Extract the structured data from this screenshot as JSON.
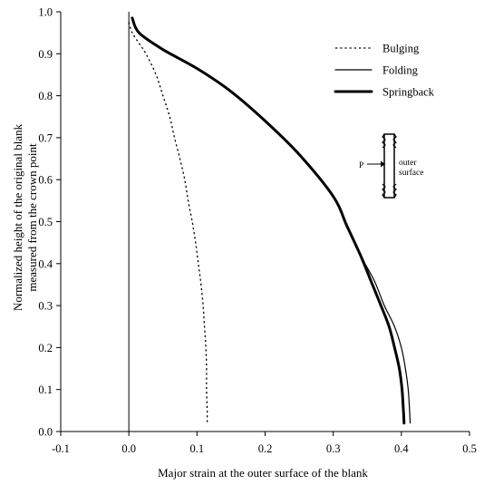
{
  "chart_data": {
    "type": "line",
    "title": "",
    "xlabel": "Major strain at the outer surface of the blank",
    "ylabel_line1": "Normalized height of the original blank",
    "ylabel_line2": "measured from the crown point",
    "xlim": [
      -0.1,
      0.5
    ],
    "ylim": [
      0.0,
      1.0
    ],
    "x_ticks": [
      -0.1,
      0.0,
      0.1,
      0.2,
      0.3,
      0.4,
      0.5
    ],
    "x_tick_labels": [
      "-0.1",
      "0.0",
      "0.1",
      "0.2",
      "0.3",
      "0.4",
      "0.5"
    ],
    "y_ticks": [
      0.0,
      0.1,
      0.2,
      0.3,
      0.4,
      0.5,
      0.6,
      0.7,
      0.8,
      0.9,
      1.0
    ],
    "y_tick_labels": [
      "0.0",
      "0.1",
      "0.2",
      "0.3",
      "0.4",
      "0.5",
      "0.6",
      "0.7",
      "0.8",
      "0.9",
      "1.0"
    ],
    "grid": false,
    "legend_position": "top-right",
    "series": [
      {
        "name": "Bulging",
        "style": "dotted",
        "width": "thin",
        "points": [
          [
            0.0,
            0.975
          ],
          [
            0.005,
            0.95
          ],
          [
            0.015,
            0.925
          ],
          [
            0.025,
            0.9
          ],
          [
            0.04,
            0.85
          ],
          [
            0.05,
            0.8
          ],
          [
            0.06,
            0.75
          ],
          [
            0.067,
            0.7
          ],
          [
            0.075,
            0.65
          ],
          [
            0.082,
            0.6
          ],
          [
            0.087,
            0.55
          ],
          [
            0.093,
            0.5
          ],
          [
            0.098,
            0.45
          ],
          [
            0.102,
            0.4
          ],
          [
            0.106,
            0.35
          ],
          [
            0.109,
            0.3
          ],
          [
            0.111,
            0.25
          ],
          [
            0.113,
            0.2
          ],
          [
            0.114,
            0.15
          ],
          [
            0.114,
            0.1
          ],
          [
            0.115,
            0.05
          ],
          [
            0.115,
            0.02
          ]
        ]
      },
      {
        "name": "Folding",
        "style": "solid",
        "width": "thin",
        "points": [
          [
            0.005,
            0.985
          ],
          [
            0.015,
            0.95
          ],
          [
            0.05,
            0.91
          ],
          [
            0.1,
            0.865
          ],
          [
            0.15,
            0.81
          ],
          [
            0.2,
            0.74
          ],
          [
            0.25,
            0.66
          ],
          [
            0.3,
            0.56
          ],
          [
            0.32,
            0.49
          ],
          [
            0.34,
            0.42
          ],
          [
            0.36,
            0.36
          ],
          [
            0.375,
            0.3
          ],
          [
            0.39,
            0.25
          ],
          [
            0.4,
            0.2
          ],
          [
            0.406,
            0.15
          ],
          [
            0.41,
            0.1
          ],
          [
            0.412,
            0.05
          ],
          [
            0.413,
            0.02
          ]
        ]
      },
      {
        "name": "Springback",
        "style": "solid",
        "width": "thick",
        "points": [
          [
            0.005,
            0.985
          ],
          [
            0.015,
            0.95
          ],
          [
            0.05,
            0.91
          ],
          [
            0.1,
            0.865
          ],
          [
            0.15,
            0.81
          ],
          [
            0.2,
            0.74
          ],
          [
            0.25,
            0.66
          ],
          [
            0.3,
            0.56
          ],
          [
            0.32,
            0.49
          ],
          [
            0.34,
            0.42
          ],
          [
            0.355,
            0.36
          ],
          [
            0.37,
            0.3
          ],
          [
            0.382,
            0.25
          ],
          [
            0.39,
            0.2
          ],
          [
            0.397,
            0.15
          ],
          [
            0.401,
            0.1
          ],
          [
            0.403,
            0.05
          ],
          [
            0.404,
            0.02
          ]
        ]
      }
    ],
    "inset": {
      "label_p": "P",
      "label_line1": "outer",
      "label_line2": "surface"
    }
  }
}
